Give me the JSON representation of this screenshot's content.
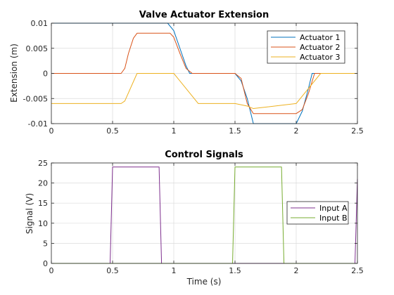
{
  "chart_data": [
    {
      "type": "line",
      "title": "Valve Actuator Extension",
      "xlabel": "",
      "ylabel": "Extension (m)",
      "xlim": [
        0,
        2.5
      ],
      "ylim": [
        -0.01,
        0.01
      ],
      "xticks": [
        0,
        0.5,
        1,
        1.5,
        2,
        2.5
      ],
      "xtick_labels": [
        "0",
        "0.5",
        "1",
        "1.5",
        "2",
        "2.5"
      ],
      "yticks": [
        -0.01,
        -0.005,
        0,
        0.005,
        0.01
      ],
      "ytick_labels": [
        "-0.01",
        "-0.005",
        "0",
        "0.005",
        "0.01"
      ],
      "grid": true,
      "legend_position": "top-right",
      "series": [
        {
          "name": "Actuator 1",
          "color": "#0072BD",
          "x": [
            0,
            0.95,
            1.0,
            1.05,
            1.1,
            1.13,
            1.5,
            1.55,
            1.6,
            1.65,
            2.0,
            2.05,
            2.1,
            2.13,
            2.5
          ],
          "y": [
            0.01,
            0.01,
            0.0085,
            0.005,
            0.0015,
            0,
            0,
            -0.0015,
            -0.005,
            -0.01,
            -0.01,
            -0.0075,
            -0.003,
            0,
            0
          ]
        },
        {
          "name": "Actuator 2",
          "color": "#D95319",
          "x": [
            0,
            0.57,
            0.6,
            0.63,
            0.67,
            0.7,
            0.97,
            1.0,
            1.05,
            1.1,
            1.15,
            1.5,
            1.55,
            1.6,
            1.65,
            2.0,
            2.05,
            2.1,
            2.15,
            2.5
          ],
          "y": [
            0,
            0,
            0.001,
            0.004,
            0.007,
            0.008,
            0.008,
            0.0072,
            0.004,
            0.001,
            0,
            0,
            -0.001,
            -0.006,
            -0.008,
            -0.008,
            -0.0072,
            -0.004,
            0,
            0
          ]
        },
        {
          "name": "Actuator 3",
          "color": "#EDB120",
          "x": [
            0,
            0.57,
            0.6,
            0.7,
            0.75,
            1.0,
            1.2,
            1.25,
            1.5,
            1.6,
            1.65,
            2.0,
            2.2,
            2.5
          ],
          "y": [
            -0.006,
            -0.006,
            -0.0055,
            0,
            0,
            0,
            -0.006,
            -0.006,
            -0.006,
            -0.0065,
            -0.007,
            -0.006,
            0,
            0
          ]
        }
      ]
    },
    {
      "type": "line",
      "title": "Control Signals",
      "xlabel": "Time (s)",
      "ylabel": "Signal (V)",
      "xlim": [
        0,
        2.5
      ],
      "ylim": [
        0,
        25
      ],
      "xticks": [
        0,
        0.5,
        1,
        1.5,
        2,
        2.5
      ],
      "xtick_labels": [
        "0",
        "0.5",
        "1",
        "1.5",
        "2",
        "2.5"
      ],
      "yticks": [
        0,
        5,
        10,
        15,
        20,
        25
      ],
      "ytick_labels": [
        "0",
        "5",
        "10",
        "15",
        "20",
        "25"
      ],
      "grid": true,
      "legend_position": "right",
      "series": [
        {
          "name": "Input A",
          "color": "#7E2F8E",
          "x": [
            0,
            0.48,
            0.5,
            0.88,
            0.9,
            2.48,
            2.5
          ],
          "y": [
            0,
            0,
            24,
            24,
            0,
            0,
            21
          ]
        },
        {
          "name": "Input B",
          "color": "#77AC30",
          "x": [
            0,
            1.48,
            1.5,
            1.88,
            1.9,
            2.5
          ],
          "y": [
            0,
            0,
            24,
            24,
            0,
            0
          ]
        }
      ]
    }
  ]
}
